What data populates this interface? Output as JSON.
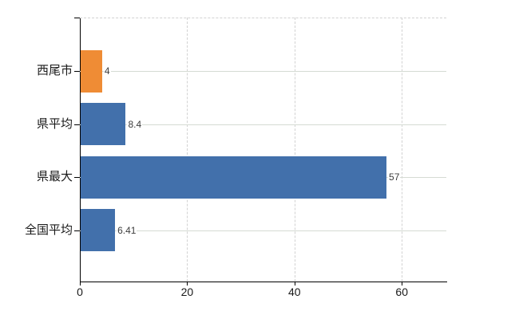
{
  "chart_data": {
    "type": "bar",
    "orientation": "horizontal",
    "title": "",
    "xlabel": "",
    "ylabel": "",
    "categories": [
      "西尾市",
      "県平均",
      "県最大",
      "全国平均"
    ],
    "values": [
      4,
      8.4,
      57,
      6.41
    ],
    "value_labels": [
      "4",
      "8.4",
      "57",
      "6.41"
    ],
    "bar_colors": [
      "#ef8c35",
      "#4270ab",
      "#4270ab",
      "#4270ab"
    ],
    "highlight_color": "#ef8c35",
    "base_color": "#4270ab",
    "xlim": [
      0,
      68.3
    ],
    "x_ticks": [
      0,
      20,
      40,
      60
    ],
    "x_tick_labels": [
      "0",
      "20",
      "40",
      "60"
    ],
    "grid": true,
    "legend": "none",
    "gridline_color": "#d5dbd3",
    "dashed_gridline_color": "#d2d2d2",
    "axis_color": "#000000"
  }
}
